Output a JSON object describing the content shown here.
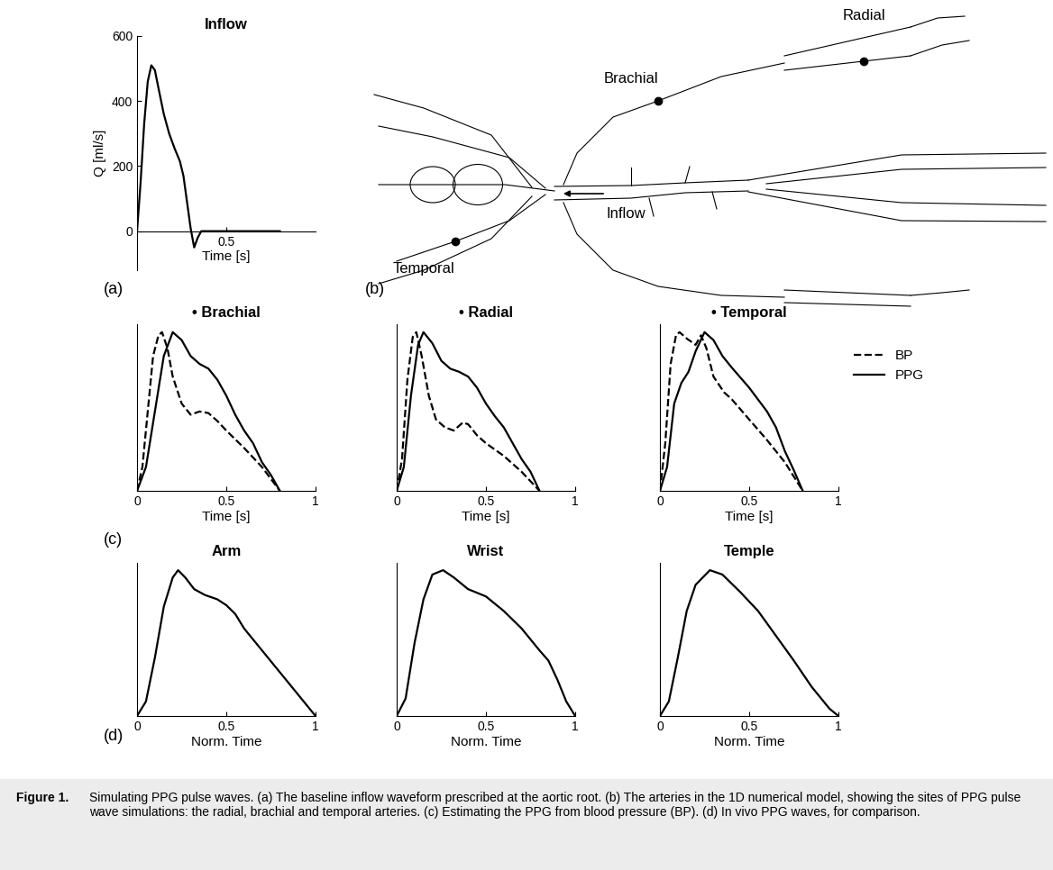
{
  "panel_labels": [
    "(a)",
    "(b)",
    "(c)",
    "(d)"
  ],
  "chart_data": [
    {
      "type": "line",
      "title": "Inflow",
      "xlabel": "Time [s]",
      "ylabel": "Q [ml/s]",
      "xlim": [
        0,
        1
      ],
      "xticks": [
        0.5
      ],
      "ylim": [
        -120,
        600
      ],
      "yticks": [
        0,
        200,
        400,
        600
      ],
      "series": [
        {
          "color": "#000000",
          "line_style": "solid",
          "x": [
            0,
            0.02,
            0.04,
            0.06,
            0.08,
            0.1,
            0.12,
            0.15,
            0.18,
            0.21,
            0.24,
            0.26,
            0.28,
            0.3,
            0.32,
            0.34,
            0.36,
            0.5,
            0.8
          ],
          "values": [
            0,
            150,
            330,
            460,
            510,
            495,
            440,
            360,
            300,
            255,
            215,
            170,
            90,
            10,
            -50,
            -20,
            0,
            0,
            0
          ]
        }
      ]
    },
    {
      "type": "line",
      "title": "• Brachial",
      "xlabel": "Time [s]",
      "tick_labels": "x",
      "xlim": [
        0,
        1
      ],
      "xticks": [
        0,
        0.5,
        1
      ],
      "ylim": [
        0,
        1.05
      ],
      "series": [
        {
          "name": "BP",
          "color": "#000000",
          "line_style": "dashed",
          "x": [
            0,
            0.03,
            0.06,
            0.09,
            0.12,
            0.14,
            0.17,
            0.2,
            0.25,
            0.3,
            0.35,
            0.4,
            0.45,
            0.5,
            0.6,
            0.7,
            0.8
          ],
          "values": [
            0,
            0.15,
            0.5,
            0.85,
            0.98,
            1.0,
            0.9,
            0.72,
            0.55,
            0.48,
            0.5,
            0.49,
            0.44,
            0.38,
            0.27,
            0.15,
            0
          ]
        },
        {
          "name": "PPG",
          "color": "#000000",
          "line_style": "solid",
          "x": [
            0,
            0.05,
            0.1,
            0.15,
            0.2,
            0.25,
            0.3,
            0.35,
            0.4,
            0.45,
            0.5,
            0.55,
            0.6,
            0.65,
            0.7,
            0.75,
            0.8
          ],
          "values": [
            0,
            0.15,
            0.5,
            0.85,
            1.0,
            0.95,
            0.85,
            0.8,
            0.77,
            0.7,
            0.6,
            0.48,
            0.38,
            0.3,
            0.18,
            0.1,
            0
          ]
        }
      ]
    },
    {
      "type": "line",
      "title": "• Radial",
      "xlabel": "Time [s]",
      "tick_labels": "x",
      "xlim": [
        0,
        1
      ],
      "xticks": [
        0,
        0.5,
        1
      ],
      "ylim": [
        0,
        1.05
      ],
      "series": [
        {
          "name": "BP",
          "color": "#000000",
          "line_style": "dashed",
          "x": [
            0,
            0.03,
            0.06,
            0.09,
            0.11,
            0.14,
            0.18,
            0.22,
            0.27,
            0.32,
            0.37,
            0.4,
            0.45,
            0.5,
            0.6,
            0.7,
            0.8
          ],
          "values": [
            0,
            0.2,
            0.7,
            0.97,
            1.0,
            0.85,
            0.6,
            0.45,
            0.4,
            0.38,
            0.43,
            0.42,
            0.35,
            0.3,
            0.22,
            0.12,
            0
          ]
        },
        {
          "name": "PPG",
          "color": "#000000",
          "line_style": "solid",
          "x": [
            0,
            0.04,
            0.08,
            0.12,
            0.15,
            0.2,
            0.25,
            0.3,
            0.35,
            0.4,
            0.45,
            0.5,
            0.55,
            0.6,
            0.65,
            0.7,
            0.75,
            0.8
          ],
          "values": [
            0,
            0.15,
            0.6,
            0.92,
            1.0,
            0.93,
            0.82,
            0.77,
            0.75,
            0.72,
            0.65,
            0.55,
            0.47,
            0.4,
            0.3,
            0.2,
            0.12,
            0
          ]
        }
      ]
    },
    {
      "type": "line",
      "title": "• Temporal",
      "xlabel": "Time [s]",
      "tick_labels": "x",
      "legend": "right",
      "xlim": [
        0,
        1
      ],
      "xticks": [
        0,
        0.5,
        1
      ],
      "ylim": [
        0,
        1.05
      ],
      "series": [
        {
          "name": "BP",
          "color": "#000000",
          "line_style": "dashed",
          "x": [
            0,
            0.03,
            0.06,
            0.09,
            0.11,
            0.15,
            0.2,
            0.23,
            0.26,
            0.3,
            0.33,
            0.36,
            0.4,
            0.5,
            0.6,
            0.7,
            0.8
          ],
          "values": [
            0,
            0.3,
            0.8,
            0.98,
            1.0,
            0.96,
            0.92,
            0.98,
            0.9,
            0.72,
            0.67,
            0.62,
            0.58,
            0.45,
            0.32,
            0.18,
            0
          ]
        },
        {
          "name": "PPG",
          "color": "#000000",
          "line_style": "solid",
          "x": [
            0,
            0.04,
            0.08,
            0.12,
            0.16,
            0.2,
            0.25,
            0.3,
            0.35,
            0.4,
            0.5,
            0.6,
            0.65,
            0.7,
            0.75,
            0.8
          ],
          "values": [
            0,
            0.15,
            0.55,
            0.68,
            0.75,
            0.88,
            1.0,
            0.95,
            0.85,
            0.78,
            0.65,
            0.5,
            0.4,
            0.25,
            0.13,
            0
          ]
        }
      ]
    },
    {
      "type": "line",
      "title": "Arm",
      "xlabel": "Norm. Time",
      "tick_labels": "x",
      "xlim": [
        0,
        1
      ],
      "xticks": [
        0,
        0.5,
        1
      ],
      "ylim": [
        0,
        1.05
      ],
      "series": [
        {
          "color": "#000000",
          "line_style": "solid",
          "x": [
            0,
            0.05,
            0.1,
            0.15,
            0.2,
            0.23,
            0.27,
            0.32,
            0.38,
            0.45,
            0.5,
            0.55,
            0.6,
            0.7,
            0.8,
            0.9,
            1
          ],
          "values": [
            0,
            0.1,
            0.4,
            0.75,
            0.95,
            1.0,
            0.95,
            0.87,
            0.83,
            0.8,
            0.76,
            0.7,
            0.6,
            0.45,
            0.3,
            0.15,
            0
          ]
        }
      ]
    },
    {
      "type": "line",
      "title": "Wrist",
      "xlabel": "Norm. Time",
      "tick_labels": "x",
      "xlim": [
        0,
        1
      ],
      "xticks": [
        0,
        0.5,
        1
      ],
      "ylim": [
        0,
        1.05
      ],
      "series": [
        {
          "color": "#000000",
          "line_style": "solid",
          "x": [
            0,
            0.05,
            0.1,
            0.15,
            0.2,
            0.26,
            0.32,
            0.4,
            0.5,
            0.6,
            0.7,
            0.8,
            0.85,
            0.9,
            0.95,
            1
          ],
          "values": [
            0,
            0.12,
            0.5,
            0.8,
            0.97,
            1.0,
            0.95,
            0.87,
            0.82,
            0.72,
            0.6,
            0.45,
            0.38,
            0.25,
            0.1,
            0
          ]
        }
      ]
    },
    {
      "type": "line",
      "title": "Temple",
      "xlabel": "Norm. Time",
      "tick_labels": "x",
      "xlim": [
        0,
        1
      ],
      "xticks": [
        0,
        0.5,
        1
      ],
      "ylim": [
        0,
        1.05
      ],
      "series": [
        {
          "color": "#000000",
          "line_style": "solid",
          "x": [
            0,
            0.05,
            0.1,
            0.15,
            0.2,
            0.28,
            0.35,
            0.45,
            0.55,
            0.65,
            0.75,
            0.85,
            0.95,
            1
          ],
          "values": [
            0,
            0.1,
            0.4,
            0.72,
            0.9,
            1.0,
            0.97,
            0.85,
            0.72,
            0.55,
            0.38,
            0.2,
            0.05,
            0
          ]
        }
      ]
    }
  ],
  "diagram": {
    "sites": [
      "Radial",
      "Brachial",
      "Temporal"
    ],
    "inflow_label": "Inflow"
  },
  "caption": {
    "label": "Figure 1.",
    "text": "Simulating PPG pulse waves. (a) The baseline inflow waveform prescribed at the aortic root. (b) The arteries in the 1D numerical model, showing the sites of PPG pulse wave simulations: the radial, brachial and temporal arteries. (c) Estimating the PPG from blood pressure (BP). (d) In vivo PPG waves, for comparison."
  }
}
